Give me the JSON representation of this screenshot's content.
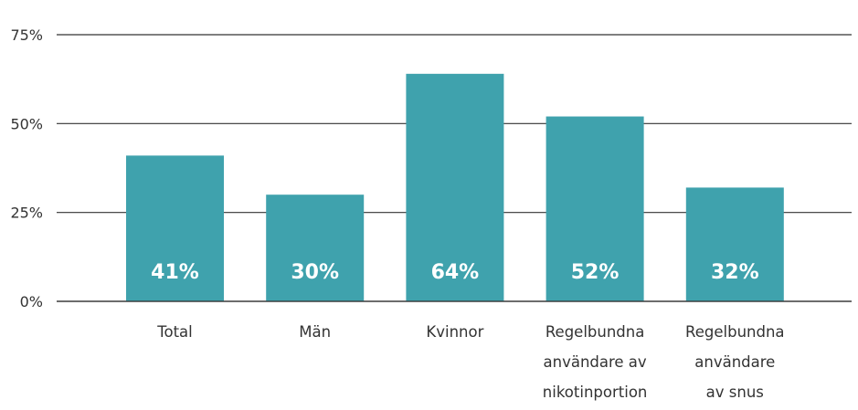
{
  "chart_data": {
    "type": "bar",
    "categories": [
      [
        "Total"
      ],
      [
        "Män"
      ],
      [
        "Kvinnor"
      ],
      [
        "Regelbundna",
        "användare av",
        "nikotinportion"
      ],
      [
        "Regelbundna",
        "användare",
        "av snus"
      ]
    ],
    "values": [
      41,
      30,
      64,
      52,
      32
    ],
    "data_labels": [
      "41%",
      "30%",
      "64%",
      "52%",
      "32%"
    ],
    "ylim": [
      0,
      75
    ],
    "yticks": [
      0,
      25,
      50,
      75
    ],
    "ytick_labels": [
      "0%",
      "25%",
      "50%",
      "75%"
    ],
    "grid": true,
    "bar_color": "#3fa2ad",
    "title": "",
    "xlabel": "",
    "ylabel": ""
  }
}
